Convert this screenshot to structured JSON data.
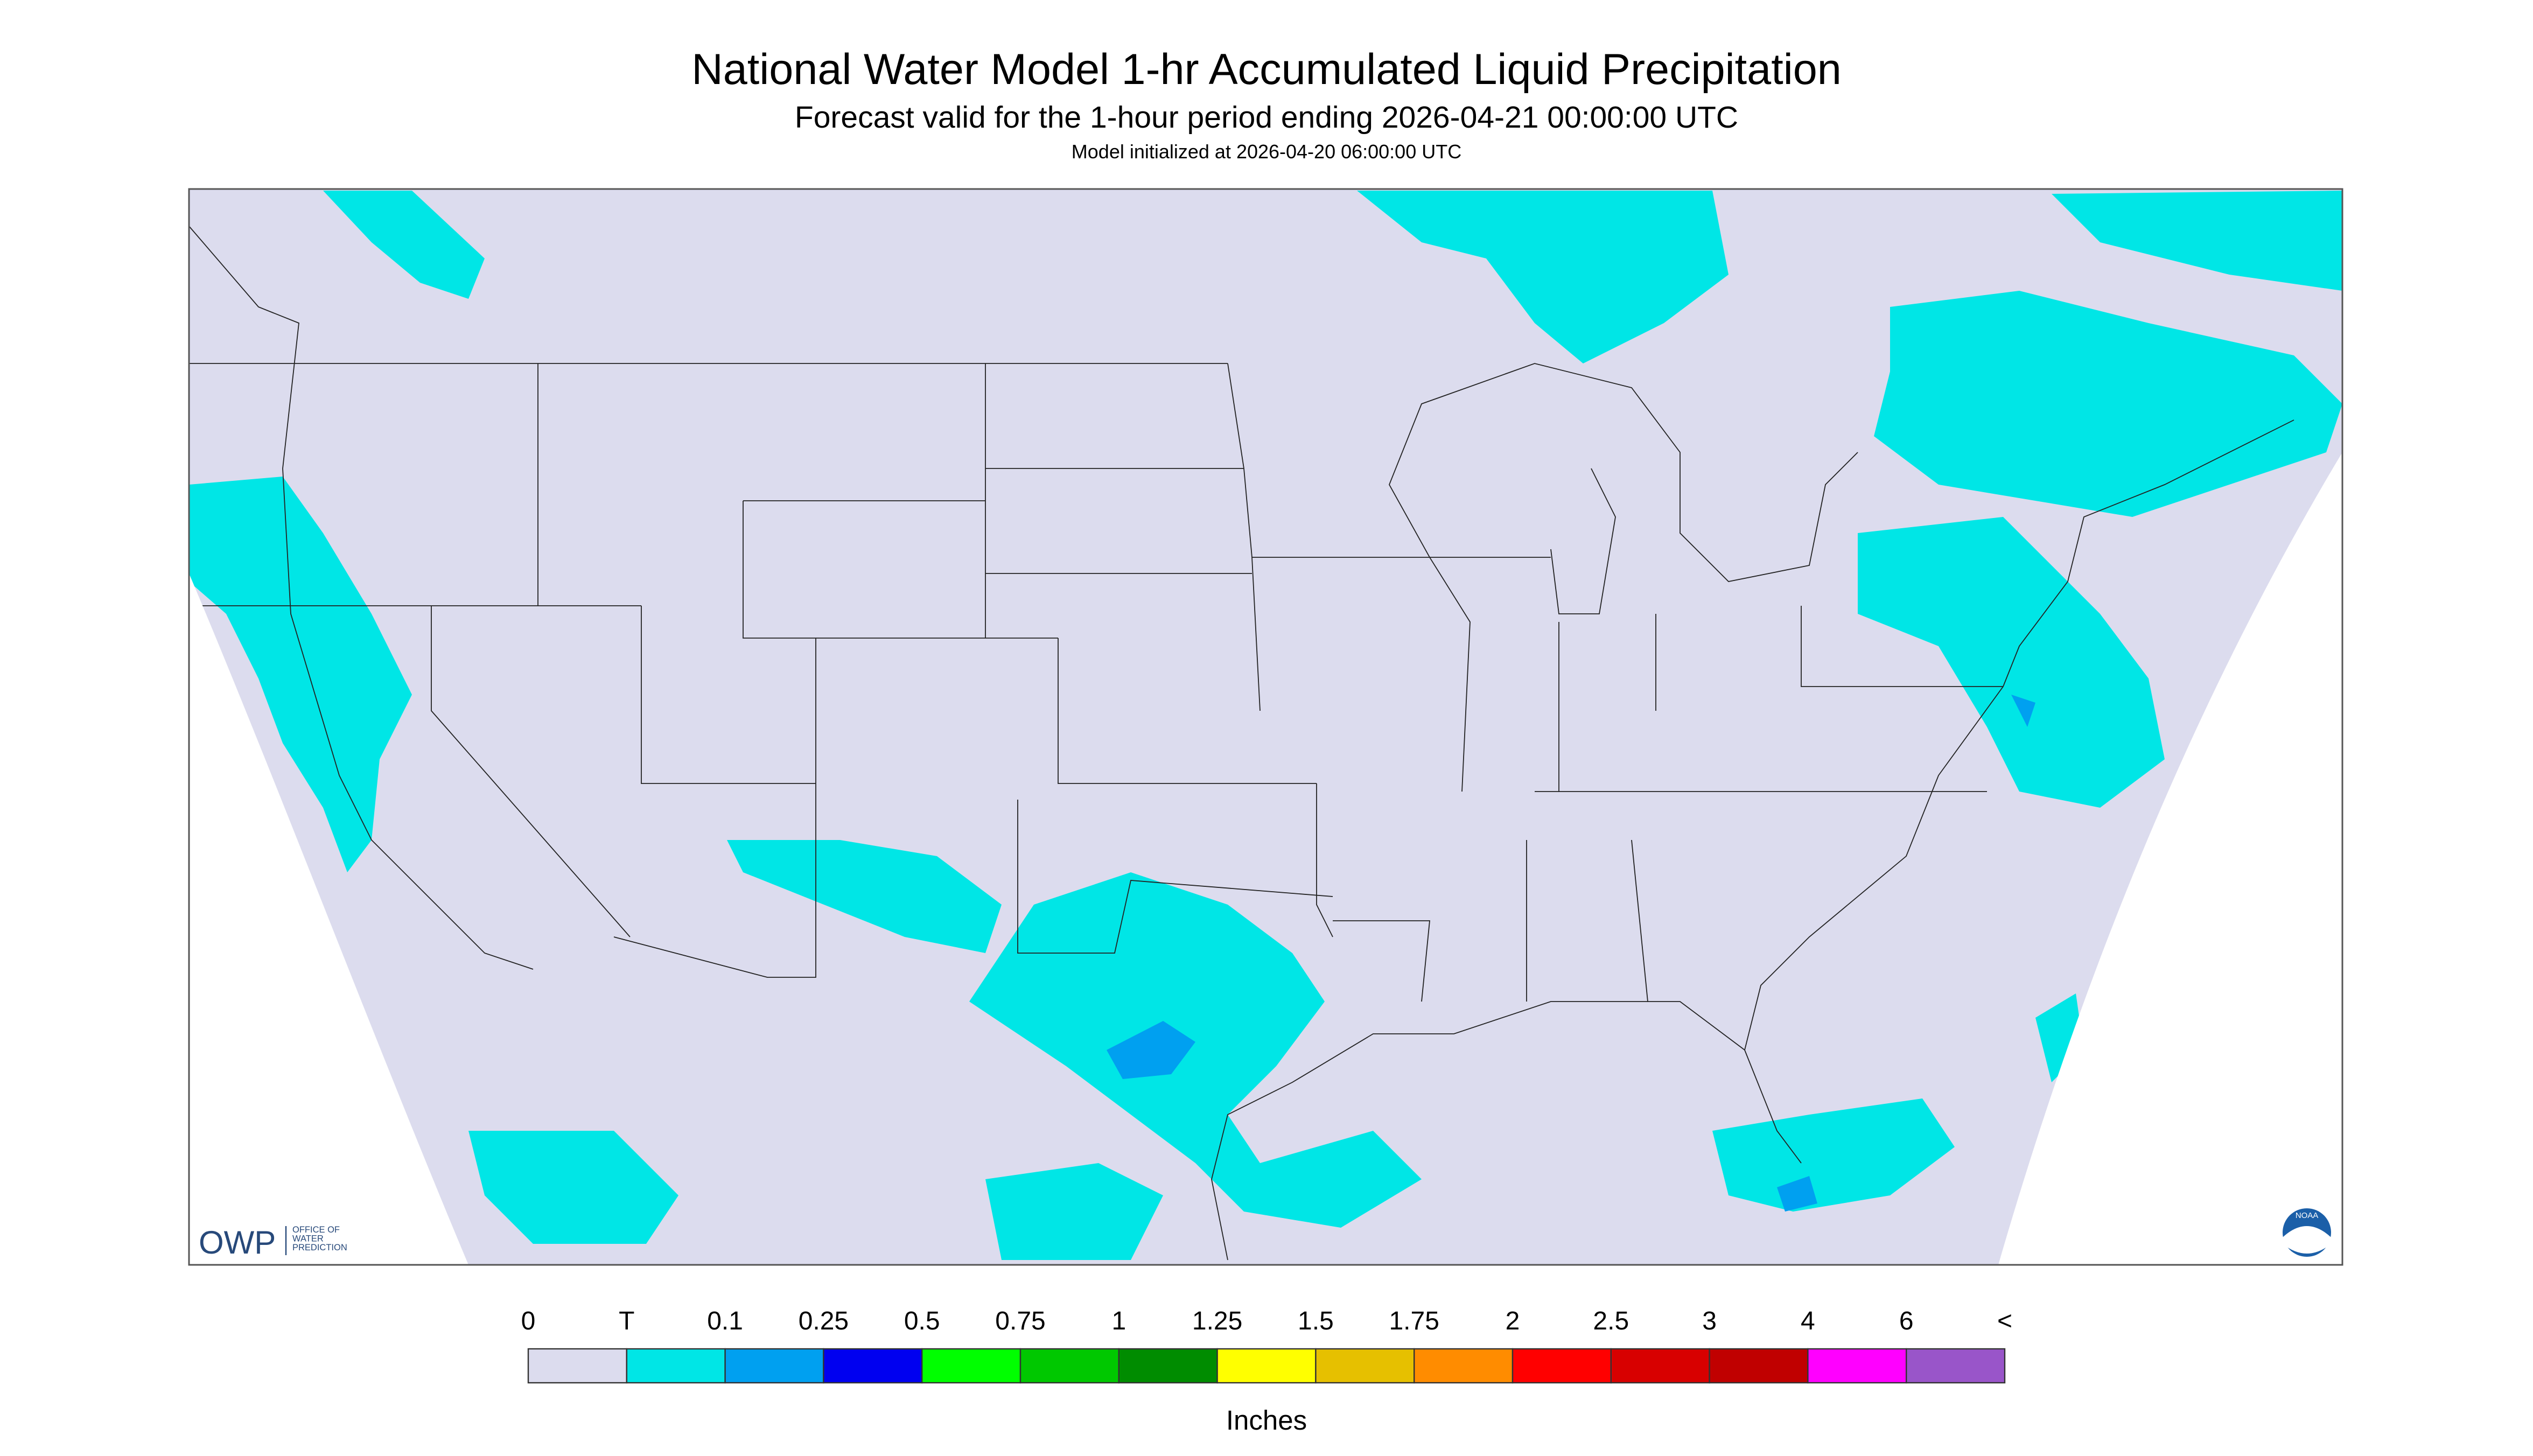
{
  "header": {
    "title": "National Water Model 1-hr Accumulated Liquid Precipitation",
    "subtitle": "Forecast valid for the 1-hour period ending 2026-04-21 00:00:00 UTC",
    "initialized": "Model initialized at 2026-04-20 06:00:00 UTC"
  },
  "legend": {
    "labels": [
      "0",
      "T",
      "0.1",
      "0.25",
      "0.5",
      "0.75",
      "1",
      "1.25",
      "1.5",
      "1.75",
      "2",
      "2.5",
      "3",
      "4",
      "6",
      "<"
    ],
    "colors": [
      "#dcdcee",
      "#00e6e6",
      "#00a0f0",
      "#0000f0",
      "#00ff00",
      "#00c800",
      "#008c00",
      "#ffff00",
      "#e6c000",
      "#ff8c00",
      "#ff0000",
      "#d80000",
      "#c00000",
      "#ff00ff",
      "#9955c9"
    ],
    "units": "Inches"
  },
  "logos": {
    "owp": "OWP",
    "owp_lines": [
      "OFFICE OF",
      "WATER",
      "PREDICTION"
    ],
    "noaa": "NOAA"
  }
}
